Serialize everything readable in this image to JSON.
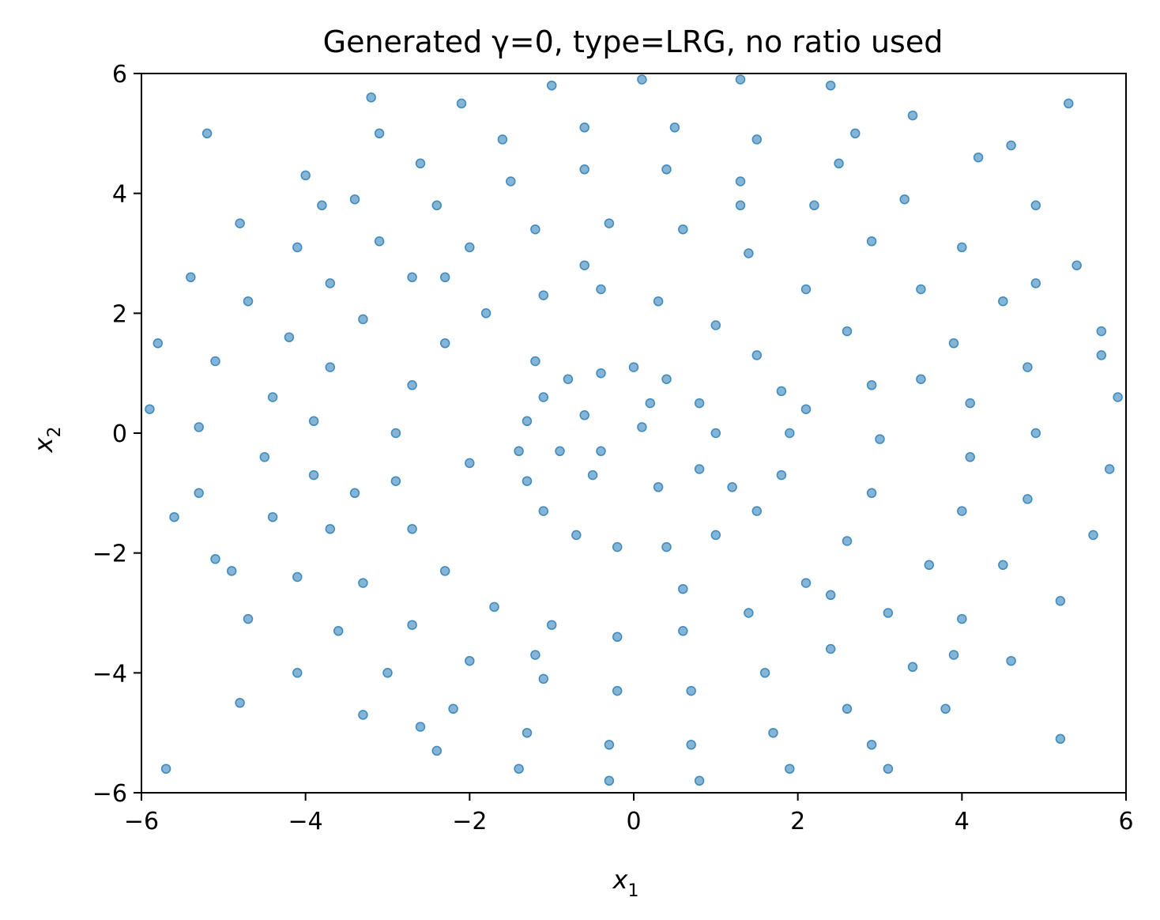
{
  "chart_data": {
    "type": "scatter",
    "title": "Generated γ=0, type=LRG, no ratio used",
    "xlabel": "x",
    "xlabel_sub": "1",
    "ylabel": "x",
    "ylabel_sub": "2",
    "xlim": [
      -6,
      6
    ],
    "ylim": [
      -6,
      6
    ],
    "xticks": [
      -6,
      -4,
      -2,
      0,
      2,
      4,
      6
    ],
    "yticks": [
      -6,
      -4,
      -2,
      0,
      2,
      4,
      6
    ],
    "xtick_labels": [
      "−6",
      "−4",
      "−2",
      "0",
      "2",
      "4",
      "6"
    ],
    "ytick_labels": [
      "−6",
      "−4",
      "−2",
      "0",
      "2",
      "4",
      "6"
    ],
    "grid": false,
    "marker_color": "#1f77b4",
    "marker_alpha": 0.55,
    "description_of_points": "approx. 1500 points forming a two-armed spiral (r ≈ 0.9 to 6) plus scattered noise",
    "series": [
      {
        "points": [
          [
            0.2,
            0.5
          ],
          [
            0.4,
            0.9
          ],
          [
            0.0,
            1.1
          ],
          [
            -0.4,
            1.0
          ],
          [
            -0.8,
            0.9
          ],
          [
            -1.1,
            0.6
          ],
          [
            -1.3,
            0.2
          ],
          [
            -1.4,
            -0.3
          ],
          [
            -1.3,
            -0.8
          ],
          [
            -1.1,
            -1.3
          ],
          [
            -0.7,
            -1.7
          ],
          [
            -0.2,
            -1.9
          ],
          [
            0.4,
            -1.9
          ],
          [
            1.0,
            -1.7
          ],
          [
            1.5,
            -1.3
          ],
          [
            1.8,
            -0.7
          ],
          [
            1.9,
            0.0
          ],
          [
            1.8,
            0.7
          ],
          [
            1.5,
            1.3
          ],
          [
            1.0,
            1.8
          ],
          [
            0.3,
            2.2
          ],
          [
            -0.4,
            2.4
          ],
          [
            -1.1,
            2.3
          ],
          [
            -1.8,
            2.0
          ],
          [
            -2.3,
            1.5
          ],
          [
            -2.7,
            0.8
          ],
          [
            -2.9,
            0.0
          ],
          [
            -2.9,
            -0.8
          ],
          [
            -2.7,
            -1.6
          ],
          [
            -2.3,
            -2.3
          ],
          [
            -1.7,
            -2.9
          ],
          [
            -1.0,
            -3.2
          ],
          [
            -0.2,
            -3.4
          ],
          [
            0.6,
            -3.3
          ],
          [
            1.4,
            -3.0
          ],
          [
            2.1,
            -2.5
          ],
          [
            2.6,
            -1.8
          ],
          [
            2.9,
            -1.0
          ],
          [
            3.0,
            -0.1
          ],
          [
            2.9,
            0.8
          ],
          [
            2.6,
            1.7
          ],
          [
            2.1,
            2.4
          ],
          [
            1.4,
            3.0
          ],
          [
            0.6,
            3.4
          ],
          [
            -0.3,
            3.5
          ],
          [
            -1.2,
            3.4
          ],
          [
            -2.0,
            3.1
          ],
          [
            -2.7,
            2.6
          ],
          [
            -3.3,
            1.9
          ],
          [
            -3.7,
            1.1
          ],
          [
            -3.9,
            0.2
          ],
          [
            -3.9,
            -0.7
          ],
          [
            -3.7,
            -1.6
          ],
          [
            -3.3,
            -2.5
          ],
          [
            -2.7,
            -3.2
          ],
          [
            -2.0,
            -3.8
          ],
          [
            -1.1,
            -4.1
          ],
          [
            -0.2,
            -4.3
          ],
          [
            0.7,
            -4.3
          ],
          [
            1.6,
            -4.0
          ],
          [
            2.4,
            -3.6
          ],
          [
            3.1,
            -3.0
          ],
          [
            3.6,
            -2.2
          ],
          [
            4.0,
            -1.3
          ],
          [
            4.1,
            -0.4
          ],
          [
            4.1,
            0.5
          ],
          [
            3.9,
            1.5
          ],
          [
            3.5,
            2.4
          ],
          [
            2.9,
            3.2
          ],
          [
            2.2,
            3.8
          ],
          [
            1.3,
            4.2
          ],
          [
            0.4,
            4.4
          ],
          [
            -0.6,
            4.4
          ],
          [
            -1.5,
            4.2
          ],
          [
            -2.4,
            3.8
          ],
          [
            -3.1,
            3.2
          ],
          [
            -3.7,
            2.5
          ],
          [
            -4.2,
            1.6
          ],
          [
            -4.4,
            0.6
          ],
          [
            -4.5,
            -0.4
          ],
          [
            -4.4,
            -1.4
          ],
          [
            -4.1,
            -2.4
          ],
          [
            -3.6,
            -3.3
          ],
          [
            -3.0,
            -4.0
          ],
          [
            -2.2,
            -4.6
          ],
          [
            -1.3,
            -5.0
          ],
          [
            -0.3,
            -5.2
          ],
          [
            0.7,
            -5.2
          ],
          [
            1.7,
            -5.0
          ],
          [
            2.6,
            -4.6
          ],
          [
            3.4,
            -3.9
          ],
          [
            4.0,
            -3.1
          ],
          [
            4.5,
            -2.2
          ],
          [
            4.8,
            -1.1
          ],
          [
            4.9,
            0.0
          ],
          [
            4.8,
            1.1
          ],
          [
            4.5,
            2.2
          ],
          [
            4.0,
            3.1
          ],
          [
            3.3,
            3.9
          ],
          [
            2.5,
            4.5
          ],
          [
            1.5,
            4.9
          ],
          [
            0.5,
            5.1
          ],
          [
            -0.6,
            5.1
          ],
          [
            -1.6,
            4.9
          ],
          [
            -2.6,
            4.5
          ],
          [
            -3.4,
            3.9
          ],
          [
            -4.1,
            3.1
          ],
          [
            -4.7,
            2.2
          ],
          [
            -5.1,
            1.2
          ],
          [
            -5.3,
            0.1
          ],
          [
            -5.3,
            -1.0
          ],
          [
            -5.1,
            -2.1
          ],
          [
            -4.7,
            -3.1
          ],
          [
            -4.1,
            -4.0
          ],
          [
            -3.3,
            -4.7
          ],
          [
            -2.4,
            -5.3
          ],
          [
            -1.4,
            -5.6
          ],
          [
            -0.3,
            -5.8
          ],
          [
            0.8,
            -5.8
          ],
          [
            1.9,
            -5.6
          ],
          [
            2.9,
            -5.2
          ],
          [
            3.8,
            -4.6
          ],
          [
            4.6,
            -3.8
          ],
          [
            5.2,
            -2.8
          ],
          [
            5.6,
            -1.7
          ],
          [
            5.8,
            -0.6
          ],
          [
            5.9,
            0.6
          ],
          [
            5.7,
            1.7
          ],
          [
            5.4,
            2.8
          ],
          [
            4.9,
            3.8
          ],
          [
            4.2,
            4.6
          ],
          [
            3.4,
            5.3
          ],
          [
            2.4,
            5.8
          ],
          [
            1.3,
            5.9
          ],
          [
            0.1,
            5.9
          ],
          [
            -1.0,
            5.8
          ],
          [
            -2.1,
            5.5
          ],
          [
            -3.1,
            5.0
          ],
          [
            -4.0,
            4.3
          ],
          [
            -4.8,
            3.5
          ],
          [
            -5.4,
            2.6
          ],
          [
            -5.8,
            1.5
          ],
          [
            -5.9,
            0.4
          ],
          [
            -0.5,
            -0.7
          ],
          [
            0.3,
            -0.9
          ],
          [
            0.8,
            -0.6
          ],
          [
            1.0,
            0.0
          ],
          [
            0.8,
            0.5
          ],
          [
            -0.6,
            0.3
          ],
          [
            -0.9,
            -0.3
          ],
          [
            -1.2,
            1.2
          ],
          [
            1.2,
            -0.9
          ],
          [
            -2.0,
            -0.5
          ],
          [
            2.1,
            0.4
          ],
          [
            0.6,
            -2.6
          ],
          [
            -0.6,
            2.8
          ],
          [
            -3.4,
            -1.0
          ],
          [
            3.5,
            0.9
          ],
          [
            -1.2,
            -3.7
          ],
          [
            1.3,
            3.8
          ],
          [
            -4.9,
            -2.3
          ],
          [
            4.9,
            2.5
          ],
          [
            -2.6,
            -4.9
          ],
          [
            2.7,
            5.0
          ],
          [
            -5.6,
            -1.4
          ],
          [
            5.7,
            1.3
          ],
          [
            -0.4,
            -0.3
          ],
          [
            0.1,
            0.1
          ],
          [
            -2.3,
            2.6
          ],
          [
            2.4,
            -2.7
          ],
          [
            -3.8,
            3.8
          ],
          [
            3.9,
            -3.7
          ],
          [
            -5.2,
            5.0
          ],
          [
            5.2,
            -5.1
          ],
          [
            -5.7,
            -5.6
          ],
          [
            5.3,
            5.5
          ],
          [
            -4.8,
            -4.5
          ],
          [
            4.6,
            4.8
          ],
          [
            -3.2,
            5.6
          ],
          [
            3.1,
            -5.6
          ]
        ]
      }
    ]
  }
}
